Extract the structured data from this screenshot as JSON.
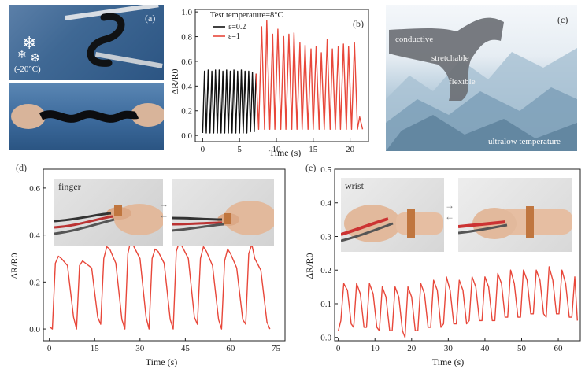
{
  "panels": {
    "a": {
      "label": "(a)",
      "temperature": "(-20°C)"
    },
    "b": {
      "label": "(b)"
    },
    "c": {
      "label": "(c)",
      "words": [
        "conductive",
        "stretchable",
        "flexible",
        "ultralow temperature"
      ]
    },
    "d": {
      "label": "(d)",
      "photo_label": "finger"
    },
    "e": {
      "label": "(e)",
      "photo_label": "wrist"
    }
  },
  "colors": {
    "black_series": "#111111",
    "red_series": "#e8473a",
    "axis": "#222222"
  },
  "chart_data": [
    {
      "id": "b",
      "type": "line",
      "title": "Test temperature=8°C",
      "xlabel": "Time (s)",
      "ylabel": "ΔR/R0",
      "xlim": [
        -1,
        22.5
      ],
      "ylim": [
        -0.05,
        1.02
      ],
      "xticks": [
        0,
        5,
        10,
        15,
        20
      ],
      "yticks": [
        0.0,
        0.2,
        0.4,
        0.6,
        0.8,
        1.0
      ],
      "grid": false,
      "legend": "top-left",
      "series": [
        {
          "name": "ε=0.2",
          "color": "#111111",
          "x": [
            0,
            0.25,
            0.5,
            0.75,
            1,
            1.25,
            1.5,
            1.75,
            2,
            2.25,
            2.5,
            2.75,
            3,
            3.25,
            3.5,
            3.75,
            4,
            4.25,
            4.5,
            4.75,
            5,
            5.25,
            5.5,
            5.75,
            6,
            6.25,
            6.5,
            6.75,
            7,
            7.25
          ],
          "y": [
            0.02,
            0.52,
            0.02,
            0.53,
            0.02,
            0.52,
            0.02,
            0.53,
            0.02,
            0.53,
            0.02,
            0.52,
            0.02,
            0.53,
            0.02,
            0.52,
            0.02,
            0.53,
            0.02,
            0.52,
            0.02,
            0.53,
            0.02,
            0.52,
            0.02,
            0.52,
            0.03,
            0.51,
            0.03,
            0.5
          ]
        },
        {
          "name": "ε=1",
          "color": "#e8473a",
          "x": [
            7.25,
            7.6,
            8,
            8.4,
            8.7,
            9.1,
            9.5,
            9.8,
            10.2,
            10.6,
            11,
            11.3,
            11.7,
            12.1,
            12.4,
            12.8,
            13.2,
            13.5,
            13.9,
            14.3,
            14.7,
            15,
            15.4,
            15.8,
            16.1,
            16.5,
            16.9,
            17.3,
            17.6,
            18,
            18.4,
            18.7,
            19.1,
            19.5,
            19.8,
            20.2,
            20.6,
            21,
            21.3,
            21.7
          ],
          "y": [
            0.5,
            0.05,
            0.88,
            0.05,
            0.93,
            0.05,
            0.82,
            0.05,
            0.86,
            0.05,
            0.8,
            0.05,
            0.82,
            0.05,
            0.83,
            0.05,
            0.75,
            0.05,
            0.73,
            0.05,
            0.7,
            0.05,
            0.72,
            0.05,
            0.67,
            0.05,
            0.78,
            0.05,
            0.7,
            0.05,
            0.72,
            0.05,
            0.74,
            0.05,
            0.72,
            0.05,
            0.75,
            0.05,
            0.15,
            0.05
          ]
        }
      ]
    },
    {
      "id": "d",
      "type": "line",
      "title": "",
      "xlabel": "Time (s)",
      "ylabel": "ΔR/R0",
      "xlim": [
        -2,
        78
      ],
      "ylim": [
        -0.05,
        0.68
      ],
      "xticks": [
        0,
        15,
        30,
        45,
        60,
        75
      ],
      "yticks": [
        0.0,
        0.2,
        0.4,
        0.6
      ],
      "grid": false,
      "series": [
        {
          "name": "finger",
          "color": "#e8473a",
          "x": [
            0,
            1,
            2,
            3,
            4,
            6,
            8,
            9,
            10,
            11,
            12,
            14,
            16,
            17,
            18,
            19,
            20,
            22,
            24,
            25,
            26,
            27,
            28,
            30,
            32,
            33,
            34,
            35,
            36,
            38,
            40,
            41,
            42,
            43,
            44,
            46,
            48,
            49,
            50,
            51,
            52,
            54,
            56,
            57,
            58,
            59,
            60,
            62,
            64,
            65,
            66,
            67,
            68,
            70,
            72,
            73
          ],
          "y": [
            0.01,
            0.0,
            0.28,
            0.31,
            0.3,
            0.27,
            0.05,
            0.0,
            0.27,
            0.29,
            0.28,
            0.26,
            0.05,
            0.02,
            0.3,
            0.35,
            0.34,
            0.28,
            0.04,
            0.0,
            0.32,
            0.38,
            0.35,
            0.3,
            0.05,
            0.0,
            0.3,
            0.34,
            0.33,
            0.28,
            0.04,
            0.0,
            0.33,
            0.37,
            0.35,
            0.3,
            0.05,
            0.02,
            0.3,
            0.35,
            0.33,
            0.27,
            0.04,
            0.0,
            0.29,
            0.34,
            0.32,
            0.26,
            0.04,
            0.02,
            0.32,
            0.36,
            0.3,
            0.25,
            0.03,
            0.0
          ]
        }
      ]
    },
    {
      "id": "e",
      "type": "line",
      "title": "",
      "xlabel": "Time (s)",
      "ylabel": "ΔR/R0",
      "xlim": [
        -1,
        66
      ],
      "ylim": [
        -0.01,
        0.5
      ],
      "xticks": [
        0,
        10,
        20,
        30,
        40,
        50,
        60
      ],
      "yticks": [
        0.0,
        0.1,
        0.2,
        0.3,
        0.4,
        0.5
      ],
      "grid": false,
      "series": [
        {
          "name": "wrist",
          "color": "#e8473a",
          "x": [
            0,
            0.7,
            1.5,
            2.5,
            3.5,
            4.2,
            5,
            6,
            7,
            7.7,
            8.5,
            9.5,
            10.5,
            11.2,
            12,
            13,
            14,
            14.7,
            15.5,
            16.5,
            17.5,
            18.2,
            19,
            20,
            21,
            21.7,
            22.5,
            23.5,
            24.5,
            25.2,
            26,
            27,
            28,
            28.7,
            29.5,
            30.5,
            31.5,
            32.2,
            33,
            34,
            35,
            35.7,
            36.5,
            37.5,
            38.5,
            39.2,
            40,
            41,
            42,
            42.7,
            43.5,
            44.5,
            45.5,
            46.2,
            47,
            48,
            49,
            49.7,
            50.5,
            51.5,
            52.5,
            53.2,
            54,
            55,
            56,
            56.7,
            57.5,
            58.5,
            59.5,
            60.2,
            61,
            62,
            63,
            63.7,
            64.5,
            65.2
          ],
          "y": [
            0.02,
            0.05,
            0.16,
            0.14,
            0.04,
            0.03,
            0.16,
            0.13,
            0.03,
            0.03,
            0.16,
            0.13,
            0.03,
            0.02,
            0.15,
            0.12,
            0.02,
            0.02,
            0.15,
            0.12,
            0.02,
            0.0,
            0.15,
            0.12,
            0.02,
            0.02,
            0.16,
            0.13,
            0.03,
            0.03,
            0.17,
            0.14,
            0.03,
            0.04,
            0.18,
            0.14,
            0.04,
            0.04,
            0.17,
            0.14,
            0.04,
            0.05,
            0.18,
            0.15,
            0.05,
            0.05,
            0.18,
            0.15,
            0.05,
            0.05,
            0.19,
            0.16,
            0.06,
            0.06,
            0.2,
            0.16,
            0.06,
            0.06,
            0.2,
            0.17,
            0.07,
            0.07,
            0.2,
            0.17,
            0.07,
            0.06,
            0.21,
            0.17,
            0.07,
            0.07,
            0.2,
            0.16,
            0.06,
            0.06,
            0.18,
            0.05
          ]
        }
      ]
    }
  ]
}
